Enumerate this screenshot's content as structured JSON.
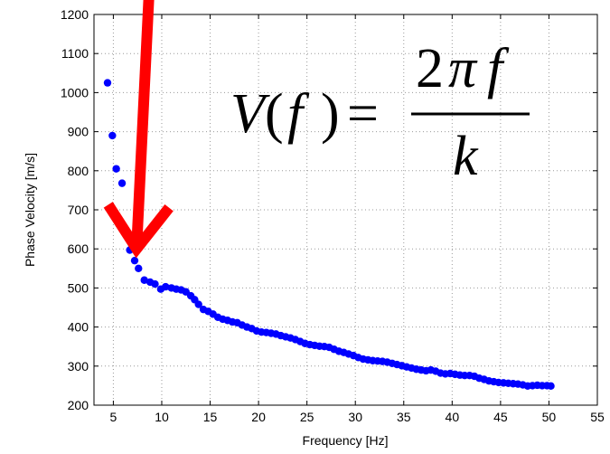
{
  "chart_data": {
    "type": "scatter",
    "title": "",
    "xlabel": "Frequency [Hz]",
    "ylabel": "Phase Velocity [m/s]",
    "xlim": [
      3,
      55
    ],
    "ylim": [
      200,
      1200
    ],
    "xticks": [
      5,
      10,
      15,
      20,
      25,
      30,
      35,
      40,
      45,
      50,
      55
    ],
    "yticks": [
      200,
      300,
      400,
      500,
      600,
      700,
      800,
      900,
      1000,
      1100,
      1200
    ],
    "grid": true,
    "marker_color": "#0000ff",
    "arrow_color": "#ff0000",
    "series": [
      {
        "points": [
          [
            4.4,
            1025
          ],
          [
            4.9,
            890
          ],
          [
            5.3,
            805
          ],
          [
            5.9,
            768
          ],
          [
            6.7,
            597
          ],
          [
            7.2,
            570
          ],
          [
            7.6,
            550
          ],
          [
            8.2,
            520
          ],
          [
            8.8,
            515
          ],
          [
            9.3,
            510
          ],
          [
            9.9,
            497
          ],
          [
            10.4,
            503
          ],
          [
            11.0,
            500
          ],
          [
            11.5,
            497
          ],
          [
            12.0,
            495
          ],
          [
            12.5,
            490
          ],
          [
            13.0,
            480
          ],
          [
            13.4,
            470
          ],
          [
            13.8,
            458
          ],
          [
            14.3,
            445
          ],
          [
            14.8,
            440
          ],
          [
            15.3,
            433
          ],
          [
            15.8,
            425
          ],
          [
            16.3,
            420
          ],
          [
            16.8,
            417
          ],
          [
            17.3,
            413
          ],
          [
            17.8,
            411
          ],
          [
            18.3,
            405
          ],
          [
            18.8,
            400
          ],
          [
            19.3,
            396
          ],
          [
            19.8,
            390
          ],
          [
            20.3,
            387
          ],
          [
            20.8,
            386
          ],
          [
            21.3,
            384
          ],
          [
            21.8,
            382
          ],
          [
            22.3,
            378
          ],
          [
            22.8,
            375
          ],
          [
            23.3,
            372
          ],
          [
            23.8,
            368
          ],
          [
            24.3,
            363
          ],
          [
            24.8,
            358
          ],
          [
            25.3,
            355
          ],
          [
            25.8,
            353
          ],
          [
            26.3,
            351
          ],
          [
            26.8,
            350
          ],
          [
            27.3,
            348
          ],
          [
            27.8,
            343
          ],
          [
            28.3,
            338
          ],
          [
            28.8,
            335
          ],
          [
            29.3,
            331
          ],
          [
            29.8,
            327
          ],
          [
            30.3,
            322
          ],
          [
            30.8,
            318
          ],
          [
            31.3,
            316
          ],
          [
            31.8,
            314
          ],
          [
            32.3,
            313
          ],
          [
            32.8,
            312
          ],
          [
            33.3,
            310
          ],
          [
            33.8,
            307
          ],
          [
            34.3,
            304
          ],
          [
            34.8,
            301
          ],
          [
            35.3,
            298
          ],
          [
            35.8,
            295
          ],
          [
            36.3,
            292
          ],
          [
            36.8,
            290
          ],
          [
            37.3,
            288
          ],
          [
            37.8,
            290
          ],
          [
            38.3,
            287
          ],
          [
            38.8,
            282
          ],
          [
            39.3,
            280
          ],
          [
            39.8,
            281
          ],
          [
            40.3,
            279
          ],
          [
            40.8,
            277
          ],
          [
            41.3,
            276
          ],
          [
            41.8,
            276
          ],
          [
            42.3,
            274
          ],
          [
            42.8,
            269
          ],
          [
            43.3,
            266
          ],
          [
            43.8,
            262
          ],
          [
            44.3,
            260
          ],
          [
            44.8,
            258
          ],
          [
            45.3,
            257
          ],
          [
            45.8,
            256
          ],
          [
            46.3,
            255
          ],
          [
            46.8,
            254
          ],
          [
            47.3,
            252
          ],
          [
            47.8,
            249
          ],
          [
            48.3,
            250
          ],
          [
            48.8,
            251
          ],
          [
            49.3,
            250
          ],
          [
            49.8,
            250
          ],
          [
            50.2,
            249
          ]
        ]
      }
    ],
    "annotations": {
      "formula": {
        "lhs_v": "V",
        "lhs_open": "(",
        "lhs_f": "f",
        "lhs_close": ")",
        "equals": "=",
        "numerator_2": "2",
        "numerator_pi": "π",
        "numerator_f": "f",
        "denominator": "k"
      },
      "arrow": {
        "from": [
          8.7,
          1500
        ],
        "to": [
          7.4,
          600
        ]
      }
    }
  }
}
